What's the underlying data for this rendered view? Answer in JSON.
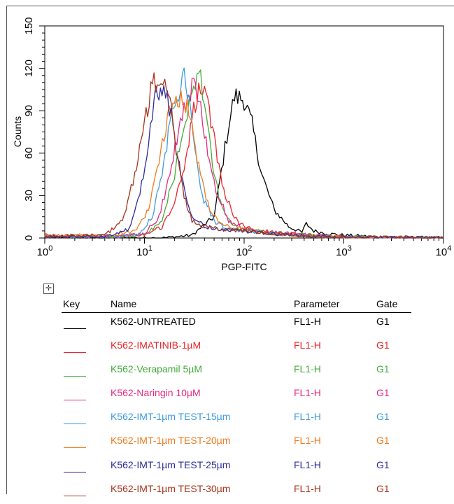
{
  "chart_data": {
    "type": "line",
    "title": "",
    "xlabel": "PGP-FITC",
    "ylabel": "Counts",
    "xscale": "log",
    "xlim": [
      1,
      10000
    ],
    "ylim": [
      0,
      150
    ],
    "x_ticks": [
      {
        "value": 1,
        "base": "10",
        "exp": "0"
      },
      {
        "value": 10,
        "base": "10",
        "exp": "1"
      },
      {
        "value": 100,
        "base": "10",
        "exp": "2"
      },
      {
        "value": 1000,
        "base": "10",
        "exp": "3"
      },
      {
        "value": 10000,
        "base": "10",
        "exp": "4"
      }
    ],
    "y_ticks": [
      "0",
      "30",
      "60",
      "90",
      "120",
      "150"
    ],
    "legend_headers": {
      "key": "Key",
      "name": "Name",
      "parameter": "Parameter",
      "gate": "Gate"
    },
    "series": [
      {
        "name": "K562-UNTREATED",
        "parameter": "FL1-H",
        "gate": "G1",
        "color": "#000000",
        "x": [
          1,
          5,
          15,
          30,
          50,
          70,
          80,
          100,
          120,
          150,
          200,
          280,
          380,
          420,
          500,
          700,
          1000,
          2000,
          10000
        ],
        "y": [
          0,
          0,
          0,
          2,
          15,
          80,
          100,
          98,
          80,
          45,
          20,
          8,
          4,
          10,
          5,
          3,
          2,
          1,
          0
        ]
      },
      {
        "name": "K562-IMATINIB-1µM",
        "parameter": "FL1-H",
        "gate": "G1",
        "color": "#e8252b",
        "x": [
          1,
          5,
          10,
          15,
          20,
          25,
          30,
          35,
          40,
          50,
          60,
          80,
          100,
          150,
          300,
          1000,
          2500,
          10000
        ],
        "y": [
          2,
          1,
          2,
          8,
          25,
          50,
          85,
          104,
          103,
          70,
          38,
          14,
          8,
          5,
          3,
          1,
          0,
          0
        ]
      },
      {
        "name": "K562-Verapamil 5µM",
        "parameter": "FL1-H",
        "gate": "G1",
        "color": "#44aa3a",
        "x": [
          1,
          5,
          10,
          15,
          20,
          25,
          30,
          35,
          40,
          50,
          60,
          80,
          100,
          200,
          500,
          1000,
          10000
        ],
        "y": [
          1,
          1,
          2,
          12,
          45,
          80,
          105,
          118,
          95,
          45,
          20,
          8,
          6,
          4,
          2,
          1,
          0
        ]
      },
      {
        "name": "K562-Naringin 10µM",
        "parameter": "FL1-H",
        "gate": "G1",
        "color": "#e6287f",
        "x": [
          1,
          5,
          10,
          14,
          18,
          22,
          26,
          30,
          35,
          40,
          50,
          70,
          100,
          200,
          500,
          1000,
          10000
        ],
        "y": [
          1,
          1,
          3,
          15,
          45,
          75,
          95,
          108,
          100,
          75,
          38,
          12,
          7,
          4,
          2,
          1,
          0
        ]
      },
      {
        "name": "K562-IMT-1µm TEST-15µm",
        "parameter": "FL1-H",
        "gate": "G1",
        "color": "#3d9be0",
        "x": [
          1,
          5,
          9,
          12,
          15,
          18,
          22,
          25,
          28,
          32,
          38,
          50,
          70,
          100,
          200,
          500,
          10000
        ],
        "y": [
          1,
          1,
          3,
          15,
          45,
          80,
          105,
          118,
          100,
          65,
          30,
          12,
          6,
          5,
          3,
          1,
          0
        ]
      },
      {
        "name": "K562-IMT-1µm TEST-20µm",
        "parameter": "FL1-H",
        "gate": "G1",
        "color": "#f07a1f",
        "x": [
          1,
          5,
          8,
          11,
          14,
          17,
          20,
          25,
          30,
          35,
          45,
          60,
          100,
          200,
          500,
          10000
        ],
        "y": [
          2,
          2,
          5,
          20,
          55,
          85,
          100,
          100,
          80,
          50,
          20,
          9,
          6,
          3,
          1,
          0
        ]
      },
      {
        "name": "K562-IMT-1µm TEST-25µm",
        "parameter": "FL1-H",
        "gate": "G1",
        "color": "#2b2c9a",
        "x": [
          1,
          4,
          7,
          9,
          11,
          13,
          15,
          17,
          20,
          25,
          30,
          40,
          60,
          100,
          200,
          500,
          10000
        ],
        "y": [
          1,
          1,
          6,
          30,
          70,
          100,
          108,
          100,
          70,
          35,
          15,
          8,
          6,
          5,
          3,
          1,
          0
        ]
      },
      {
        "name": "K562-IMT-1µm TEST-30µm",
        "parameter": "FL1-H",
        "gate": "G1",
        "color": "#a8331b",
        "x": [
          1,
          4,
          6,
          8,
          10,
          12,
          14,
          16,
          18,
          20,
          25,
          30,
          40,
          60,
          100,
          200,
          500,
          10000
        ],
        "y": [
          1,
          2,
          12,
          45,
          80,
          108,
          112,
          105,
          100,
          70,
          30,
          12,
          8,
          6,
          5,
          3,
          1,
          0
        ]
      }
    ]
  }
}
